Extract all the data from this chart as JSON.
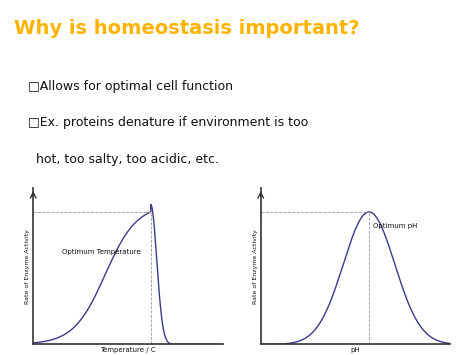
{
  "title": "Why is homeostasis important?",
  "title_color": "#FFB300",
  "title_bg": "#000000",
  "bg_color": "#ffffff",
  "bullet1": "□Allows for optimal cell function",
  "bullet2": "□Ex. proteins denature if environment is too",
  "bullet2b": "  hot, too salty, too acidic, etc.",
  "graph1_xlabel": "Temperature / C",
  "graph1_ylabel": "Rate of Enzyme Activity",
  "graph1_label": "Optimum Temperature",
  "graph2_xlabel": "pH",
  "graph2_ylabel": "Rate of Enzyme Activity",
  "graph2_label": "Optimum pH",
  "curve_color": "#3a3a8c",
  "line_color": "#999999",
  "text_color": "#111111",
  "axes_color": "#333333",
  "font_family": "DejaVu Sans",
  "title_fontsize": 14,
  "bullet_fontsize": 9,
  "graph_label_fontsize": 5,
  "graph_axis_fontsize": 5,
  "graph_ylabel_fontsize": 4.5
}
